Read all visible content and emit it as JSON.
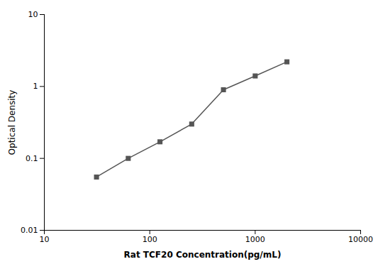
{
  "chart_data": {
    "type": "line",
    "x": [
      31.25,
      62.5,
      125,
      250,
      500,
      1000,
      2000
    ],
    "values": [
      0.055,
      0.1,
      0.17,
      0.3,
      0.9,
      1.4,
      2.2
    ],
    "xlabel": "Rat TCF20 Concentration(pg/mL)",
    "ylabel": "Optical Density",
    "xlim": [
      10,
      10000
    ],
    "ylim": [
      0.01,
      10
    ],
    "xticks": [
      10,
      100,
      1000,
      10000
    ],
    "yticks": [
      0.01,
      0.1,
      1,
      10
    ],
    "log": true,
    "grid": false,
    "color": "#555555",
    "marker": "square",
    "line_style": "solid"
  }
}
